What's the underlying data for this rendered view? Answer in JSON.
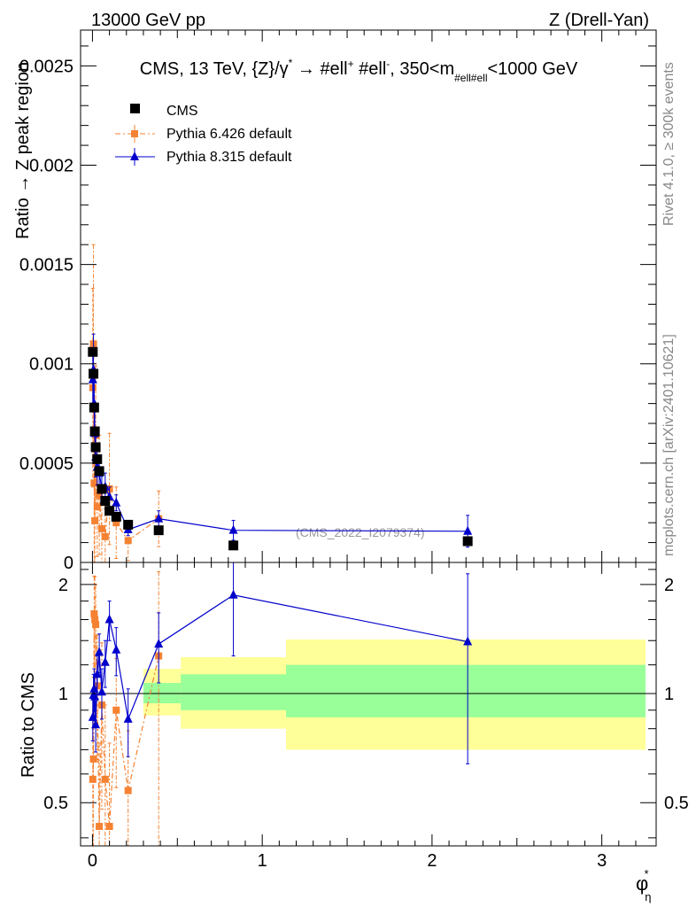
{
  "header": {
    "left": "13000 GeV pp",
    "right": "Z (Drell-Yan)"
  },
  "side_texts": {
    "rivet": "Rivet 4.1.0, ≥ 300k events",
    "mcplots": "mcplots.cern.ch [arXiv:2401.10621]"
  },
  "chart_data": [
    {
      "type": "scatter",
      "panel": "main",
      "title": "CMS, 13 TeV, {Z}/γ* → #ell⁺ #ell⁻, 350<m_#ell#ell<1000 GeV",
      "ylabel": "Ratio → Z peak region",
      "watermark": "(CMS_2022_I2079374)",
      "ylim": [
        0,
        0.00268
      ],
      "yticks": [
        {
          "v": 0,
          "label": "0"
        },
        {
          "v": 0.0005,
          "label": "0.0005"
        },
        {
          "v": 0.001,
          "label": "0.001"
        },
        {
          "v": 0.0015,
          "label": "0.0015"
        },
        {
          "v": 0.002,
          "label": "0.002"
        },
        {
          "v": 0.0025,
          "label": "0.0025"
        }
      ],
      "series": [
        {
          "name": "CMS",
          "color": "#000000",
          "style": "square",
          "points": [
            [
              0.002,
              0.00106
            ],
            [
              0.006,
              0.00095
            ],
            [
              0.01,
              0.00078
            ],
            [
              0.014,
              0.00066
            ],
            [
              0.019,
              0.00058
            ],
            [
              0.028,
              0.00052
            ],
            [
              0.04,
              0.00046
            ],
            [
              0.055,
              0.00037
            ],
            [
              0.075,
              0.00031
            ],
            [
              0.1,
              0.00026
            ],
            [
              0.14,
              0.00023
            ],
            [
              0.21,
              0.00019
            ],
            [
              0.39,
              0.000162
            ],
            [
              0.83,
              8.55e-05
            ],
            [
              2.21,
              0.000107
            ]
          ]
        },
        {
          "name": "Pythia 6.426 default",
          "color": "#f58232",
          "style": "dashdot-square",
          "points": [
            [
              0.002,
              0.00088
            ],
            [
              0.006,
              0.0011
            ],
            [
              0.01,
              0.0004
            ],
            [
              0.014,
              0.00021
            ],
            [
              0.019,
              0.00064
            ],
            [
              0.028,
              0.00028
            ],
            [
              0.04,
              0.00034
            ],
            [
              0.055,
              0.00017
            ],
            [
              0.075,
              0.00013
            ],
            [
              0.1,
              0.00037
            ],
            [
              0.14,
              0.0002
            ],
            [
              0.21,
              0.00011
            ],
            [
              0.39,
              0.00022
            ]
          ],
          "err": [
            0.0005,
            0.0005,
            0.0004,
            0.00022,
            0.00035,
            0.00025,
            0.0003,
            0.00018,
            0.00014,
            0.00028,
            0.00018,
            0.0001,
            0.00014
          ]
        },
        {
          "name": "Pythia 8.315 default",
          "color": "#0000cc",
          "style": "triangle",
          "points": [
            [
              0.002,
              0.00092
            ],
            [
              0.006,
              0.00097
            ],
            [
              0.01,
              0.0008
            ],
            [
              0.014,
              0.00065
            ],
            [
              0.019,
              0.00053
            ],
            [
              0.028,
              0.00048
            ],
            [
              0.04,
              0.00045
            ],
            [
              0.055,
              0.00037
            ],
            [
              0.075,
              0.00038
            ],
            [
              0.1,
              0.00033
            ],
            [
              0.14,
              0.0003
            ],
            [
              0.21,
              0.000165
            ],
            [
              0.39,
              0.00022
            ],
            [
              0.83,
              0.000162
            ],
            [
              2.21,
              0.000157
            ]
          ],
          "err": [
            0.00012,
            0.00018,
            0.00015,
            0.00012,
            0.0001,
            9e-05,
            8e-05,
            7e-05,
            7e-05,
            5e-05,
            4e-05,
            3e-05,
            4e-05,
            5e-05,
            8e-05
          ]
        }
      ]
    },
    {
      "type": "scatter",
      "panel": "ratio",
      "ylabel": "Ratio to CMS",
      "xlabel": "φ*_η",
      "ylim": [
        0.38,
        2.3
      ],
      "xlim": [
        -0.07,
        3.32
      ],
      "xticks": [
        {
          "v": 0,
          "label": "0"
        },
        {
          "v": 1,
          "label": "1"
        },
        {
          "v": 2,
          "label": "2"
        },
        {
          "v": 3,
          "label": "3"
        }
      ],
      "yticks": [
        {
          "v": 0.5,
          "label": "0.5"
        },
        {
          "v": 1,
          "label": "1"
        },
        {
          "v": 2,
          "label": "2"
        }
      ],
      "bands": [
        {
          "x": [
            0.3,
            0.52
          ],
          "yellow": [
            0.87,
            1.17
          ],
          "green": [
            0.94,
            1.07
          ]
        },
        {
          "x": [
            0.52,
            1.14
          ],
          "yellow": [
            0.8,
            1.26
          ],
          "green": [
            0.9,
            1.13
          ]
        },
        {
          "x": [
            1.14,
            3.3
          ],
          "yellow": [
            0.7,
            1.41
          ],
          "green": [
            0.86,
            1.2
          ]
        }
      ],
      "series": [
        {
          "name": "Pythia 6.426 default",
          "color": "#f58232",
          "points": [
            [
              0.002,
              0.58
            ],
            [
              0.006,
              0.66
            ],
            [
              0.01,
              1.66
            ],
            [
              0.014,
              1.6
            ],
            [
              0.019,
              1.55
            ],
            [
              0.028,
              1.05
            ],
            [
              0.04,
              0.43
            ],
            [
              0.055,
              0.93
            ],
            [
              0.075,
              0.58
            ],
            [
              0.1,
              0.43
            ],
            [
              0.14,
              0.9
            ],
            [
              0.21,
              0.54
            ],
            [
              0.39,
              1.27
            ]
          ],
          "err": [
            0.4,
            0.45,
            0.45,
            0.5,
            0.45,
            0.4,
            0.3,
            0.45,
            0.35,
            0.3,
            0.35,
            0.25,
            0.9
          ]
        },
        {
          "name": "Pythia 8.315 default",
          "color": "#0000cc",
          "points": [
            [
              0.002,
              0.86
            ],
            [
              0.006,
              0.99
            ],
            [
              0.01,
              1.03
            ],
            [
              0.014,
              0.98
            ],
            [
              0.019,
              0.82
            ],
            [
              0.028,
              1.13
            ],
            [
              0.04,
              1.3
            ],
            [
              0.055,
              1.01
            ],
            [
              0.075,
              1.22
            ],
            [
              0.1,
              1.6
            ],
            [
              0.14,
              1.32
            ],
            [
              0.21,
              0.85
            ],
            [
              0.39,
              1.37
            ],
            [
              0.83,
              1.87
            ],
            [
              2.21,
              1.39
            ]
          ],
          "err": [
            0.12,
            0.14,
            0.14,
            0.14,
            0.13,
            0.14,
            0.16,
            0.16,
            0.18,
            0.2,
            0.2,
            0.18,
            0.3,
            0.6,
            0.75
          ]
        }
      ]
    }
  ]
}
